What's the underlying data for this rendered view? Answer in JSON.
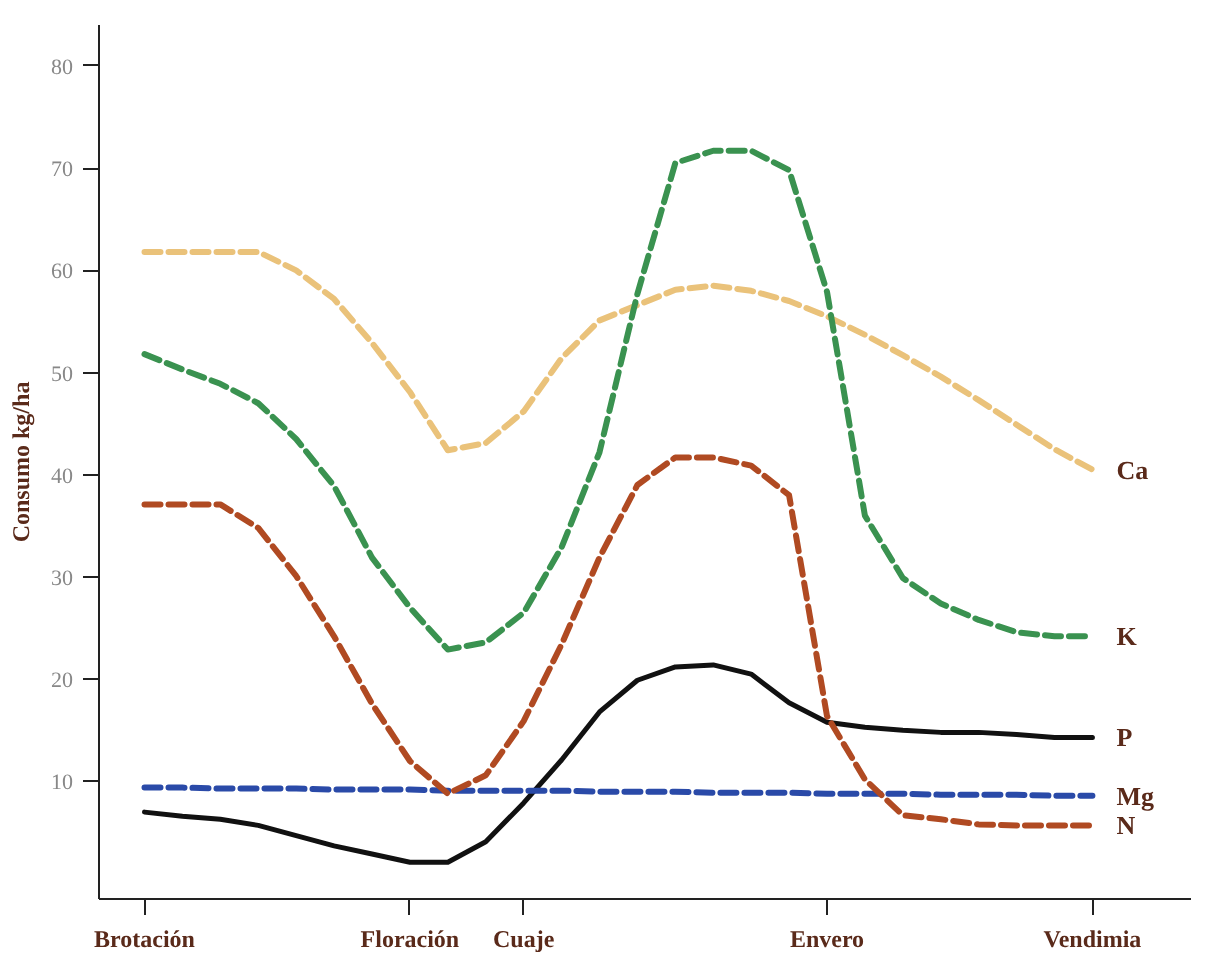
{
  "chart_data": {
    "type": "line",
    "ylabel": "Consumo kg/ha",
    "categories": [
      "Brotación",
      null,
      null,
      null,
      null,
      null,
      null,
      "Floración",
      null,
      null,
      "Cuaje",
      null,
      null,
      null,
      null,
      null,
      null,
      null,
      "Envero",
      null,
      null,
      null,
      null,
      null,
      null,
      "Vendimia"
    ],
    "ylim": [
      -1.5,
      84
    ],
    "yticks": [
      10,
      20,
      30,
      40,
      50,
      60,
      70,
      80
    ],
    "grid": false,
    "legend": false,
    "marker": "none",
    "series": [
      {
        "name": "Ca",
        "color": "#eac27a",
        "line_style": "dashed",
        "values": [
          61.8,
          61.8,
          61.8,
          61.8,
          60.0,
          57.2,
          52.9,
          48.1,
          42.4,
          43.1,
          46.2,
          51.4,
          55.1,
          56.6,
          58.1,
          58.5,
          58.0,
          57.0,
          55.5,
          53.7,
          51.7,
          49.6,
          47.3,
          44.9,
          42.5,
          40.5
        ]
      },
      {
        "name": "K",
        "color": "#3a9250",
        "line_style": "dashed",
        "values": [
          51.8,
          50.3,
          48.9,
          47.0,
          43.5,
          38.9,
          31.9,
          27.0,
          22.9,
          23.6,
          26.5,
          32.9,
          42.2,
          57.7,
          70.5,
          71.7,
          71.7,
          69.8,
          57.9,
          36.0,
          29.9,
          27.4,
          25.8,
          24.6,
          24.2,
          24.2
        ]
      },
      {
        "name": "P",
        "color": "#111111",
        "line_style": "solid",
        "values": [
          7.0,
          6.6,
          6.3,
          5.7,
          4.7,
          3.7,
          2.9,
          2.1,
          2.1,
          4.1,
          7.9,
          12.1,
          16.8,
          19.9,
          21.2,
          21.4,
          20.5,
          17.7,
          15.8,
          15.3,
          15.0,
          14.8,
          14.8,
          14.6,
          14.3,
          14.3
        ]
      },
      {
        "name": "Mg",
        "color": "#2a4aa8",
        "line_style": "dashed",
        "values": [
          9.4,
          9.4,
          9.3,
          9.3,
          9.3,
          9.2,
          9.2,
          9.2,
          9.1,
          9.1,
          9.1,
          9.1,
          9.0,
          9.0,
          9.0,
          8.9,
          8.9,
          8.9,
          8.8,
          8.8,
          8.8,
          8.7,
          8.7,
          8.7,
          8.6,
          8.6
        ]
      },
      {
        "name": "N",
        "color": "#b04a22",
        "line_style": "dashed",
        "values": [
          37.1,
          37.1,
          37.1,
          34.8,
          30.1,
          24.2,
          17.6,
          12.0,
          8.8,
          10.6,
          15.9,
          23.4,
          31.9,
          39.0,
          41.7,
          41.7,
          40.9,
          38.0,
          16.4,
          10.2,
          6.7,
          6.3,
          5.8,
          5.7,
          5.7,
          5.7
        ]
      }
    ]
  }
}
